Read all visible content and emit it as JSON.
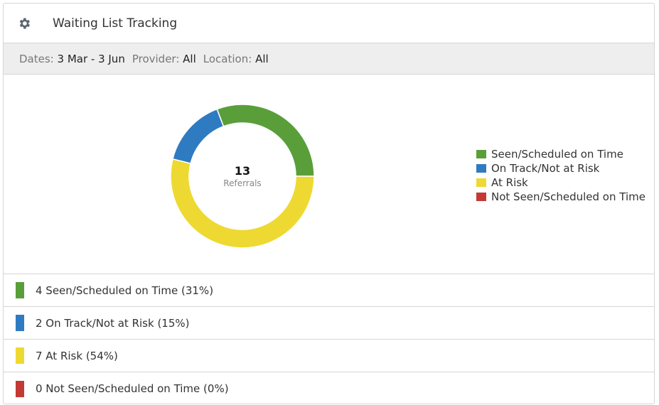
{
  "header": {
    "title": "Waiting List Tracking",
    "icon": "gear-icon"
  },
  "filters": [
    {
      "label": "Dates:",
      "value": "3 Mar - 3 Jun"
    },
    {
      "label": "Provider:",
      "value": "All"
    },
    {
      "label": "Location:",
      "value": "All"
    }
  ],
  "chart_data": {
    "type": "pie",
    "total": "13",
    "total_label": "Referrals",
    "categories": [
      "Seen/Scheduled on Time",
      "On Track/Not at Risk",
      "At Risk",
      "Not Seen/Scheduled on Time"
    ],
    "values": [
      4,
      2,
      7,
      0
    ],
    "colors": [
      "#5a9e3a",
      "#2f7bc2",
      "#eed932",
      "#c23a33"
    ],
    "legend_position": "right"
  },
  "rows": [
    {
      "text": "4 Seen/Scheduled on Time (31%)",
      "color": "#5a9e3a"
    },
    {
      "text": "2 On Track/Not at Risk (15%)",
      "color": "#2f7bc2"
    },
    {
      "text": "7 At Risk (54%)",
      "color": "#eed932"
    },
    {
      "text": "0 Not Seen/Scheduled on Time (0%)",
      "color": "#c23a33"
    }
  ]
}
